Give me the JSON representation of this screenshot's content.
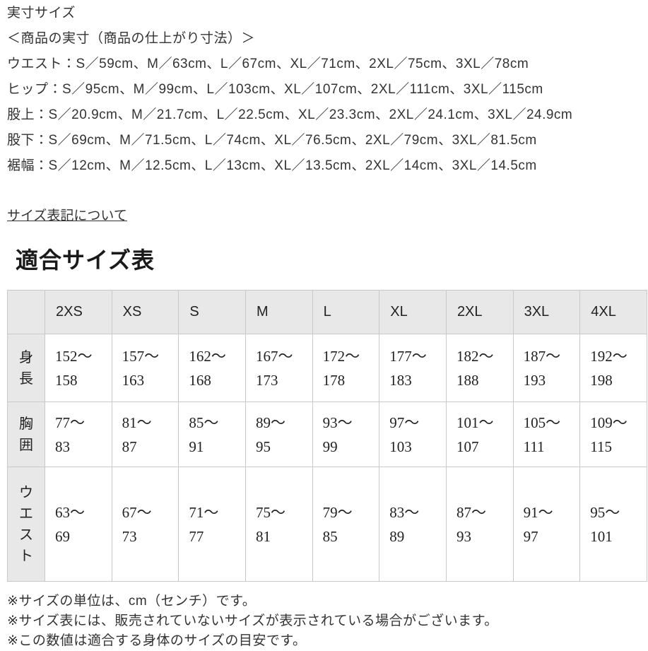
{
  "page": {
    "section_title": "実寸サイズ",
    "spec_heading": "＜商品の実寸（商品の仕上がり寸法）＞",
    "measurements": [
      "ウエスト：S／59cm、M／63cm、L／67cm、XL／71cm、2XL／75cm、3XL／78cm",
      "ヒップ：S／95cm、M／99cm、L／103cm、XL／107cm、2XL／111cm、3XL／115cm",
      "股上：S／20.9cm、M／21.7cm、L／22.5cm、XL／23.3cm、2XL／24.1cm、3XL／24.9cm",
      "股下：S／69cm、M／71.5cm、L／74cm、XL／76.5cm、2XL／79cm、3XL／81.5cm",
      "裾幅：S／12cm、M／12.5cm、L／13cm、XL／13.5cm、2XL／14cm、3XL／14.5cm"
    ],
    "size_notation_link": "サイズ表記について",
    "fit_table_heading": "適合サイズ表",
    "notes": [
      "※サイズの単位は、cm（センチ）です。",
      "※サイズ表には、販売されていないサイズが表示されている場合がございます。",
      "※この数値は適合する身体のサイズの目安です。"
    ]
  },
  "chart_data": {
    "type": "table",
    "title": "適合サイズ表",
    "unit": "cm",
    "columns": [
      "2XS",
      "XS",
      "S",
      "M",
      "L",
      "XL",
      "2XL",
      "3XL",
      "4XL"
    ],
    "rows": [
      {
        "label": "身長",
        "values": [
          "152～158",
          "157～163",
          "162～168",
          "167～173",
          "172～178",
          "177～183",
          "182～188",
          "187～193",
          "192～198"
        ]
      },
      {
        "label": "胸囲",
        "values": [
          "77～83",
          "81～87",
          "85～91",
          "89～95",
          "93～99",
          "97～103",
          "101～107",
          "105～111",
          "109～115"
        ]
      },
      {
        "label": "ウエスト",
        "values": [
          "63～69",
          "67～73",
          "71～77",
          "75～81",
          "79～85",
          "83～89",
          "87～93",
          "91～97",
          "95～101"
        ]
      }
    ]
  },
  "colors": {
    "table_header_bg": "#e8e8e8",
    "table_border": "#c9c9c9",
    "text": "#333333"
  }
}
